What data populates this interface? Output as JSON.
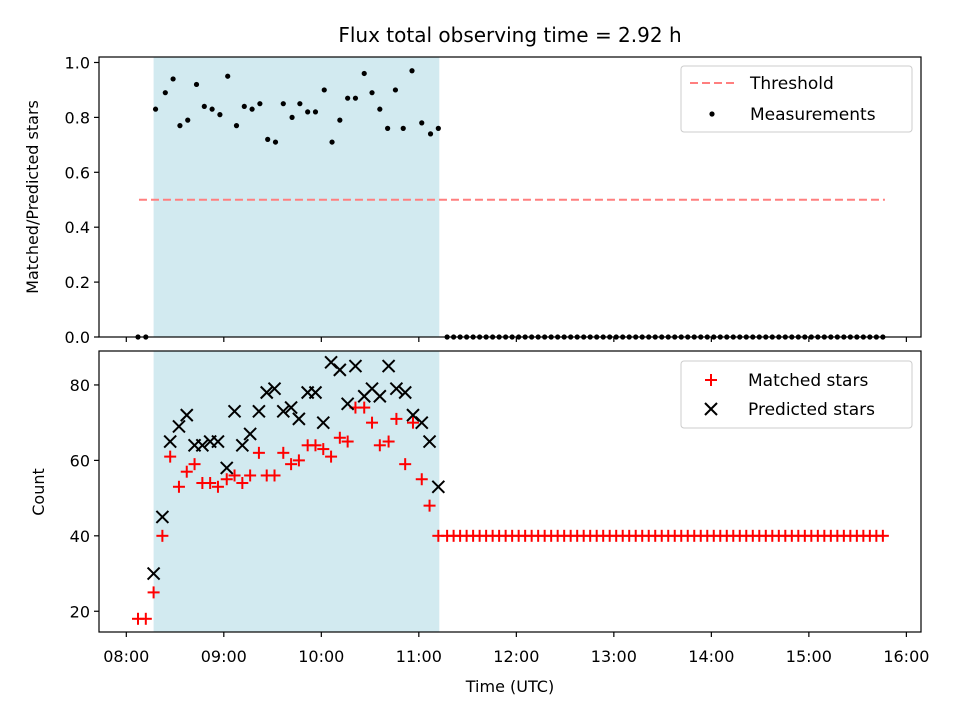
{
  "chart_data": {
    "type": "scatter",
    "title": "Flux total observing time = 2.92 h",
    "xlabel": "Time (UTC)",
    "x_ticks": [
      "08:00",
      "09:00",
      "10:00",
      "11:00",
      "12:00",
      "13:00",
      "14:00",
      "15:00",
      "16:00"
    ],
    "x_range_hours": [
      7.72,
      16.15
    ],
    "observing_window_hours": [
      8.28,
      11.21
    ],
    "colors": {
      "window": "#d2eaf0",
      "threshold": "#ff7f7f",
      "matched": "#ff0000",
      "predicted": "#000000",
      "measurement": "#000000"
    },
    "top": {
      "ylabel": "Matched/Predicted stars",
      "ylim": [
        0,
        1.02
      ],
      "y_ticks": [
        0.0,
        0.2,
        0.4,
        0.6,
        0.8,
        1.0
      ],
      "threshold": {
        "value": 0.5,
        "x_range": [
          8.13,
          15.78
        ],
        "label": "Threshold"
      },
      "measurements": {
        "label": "Measurements",
        "x": [
          8.12,
          8.2,
          8.3,
          8.4,
          8.48,
          8.55,
          8.63,
          8.72,
          8.8,
          8.88,
          8.96,
          9.04,
          9.13,
          9.21,
          9.29,
          9.37,
          9.45,
          9.53,
          9.61,
          9.7,
          9.78,
          9.86,
          9.94,
          10.03,
          10.11,
          10.19,
          10.27,
          10.35,
          10.44,
          10.52,
          10.6,
          10.68,
          10.76,
          10.84,
          10.93,
          11.03,
          11.12,
          11.2
        ],
        "y": [
          0.0,
          0.0,
          0.83,
          0.89,
          0.94,
          0.77,
          0.79,
          0.92,
          0.84,
          0.83,
          0.81,
          0.95,
          0.77,
          0.84,
          0.83,
          0.85,
          0.72,
          0.71,
          0.85,
          0.8,
          0.85,
          0.82,
          0.82,
          0.9,
          0.71,
          0.79,
          0.87,
          0.87,
          0.96,
          0.89,
          0.83,
          0.76,
          0.9,
          0.76,
          0.97,
          0.78,
          0.74,
          0.76
        ],
        "zero_series": {
          "start": 11.29,
          "end": 15.78,
          "step": 0.0667,
          "value": 0.0
        }
      },
      "legend": {
        "position": "top-right",
        "entries": [
          "Threshold",
          "Measurements"
        ]
      }
    },
    "bottom": {
      "ylabel": "Count",
      "ylim": [
        14.5,
        89
      ],
      "y_ticks": [
        20,
        40,
        60,
        80
      ],
      "matched": {
        "label": "Matched stars",
        "x": [
          8.12,
          8.2,
          8.28,
          8.37,
          8.45,
          8.54,
          8.62,
          8.7,
          8.78,
          8.86,
          8.94,
          9.03,
          9.11,
          9.19,
          9.27,
          9.36,
          9.44,
          9.52,
          9.61,
          9.69,
          9.77,
          9.86,
          9.94,
          10.02,
          10.1,
          10.19,
          10.27,
          10.35,
          10.44,
          10.52,
          10.6,
          10.69,
          10.77,
          10.86,
          10.94,
          11.03,
          11.11,
          11.2
        ],
        "y": [
          18,
          18,
          25,
          40,
          61,
          53,
          57,
          59,
          54,
          54,
          53,
          55,
          56,
          54,
          56,
          62,
          56,
          56,
          62,
          59,
          60,
          64,
          64,
          63,
          61,
          66,
          65,
          74,
          74,
          70,
          64,
          65,
          71,
          59,
          70,
          55,
          48,
          40
        ],
        "constant_series": {
          "start": 11.29,
          "end": 15.78,
          "step": 0.0667,
          "value": 40
        }
      },
      "predicted": {
        "label": "Predicted stars",
        "x": [
          8.28,
          8.37,
          8.45,
          8.54,
          8.62,
          8.7,
          8.78,
          8.86,
          8.94,
          9.03,
          9.11,
          9.19,
          9.27,
          9.36,
          9.44,
          9.52,
          9.61,
          9.69,
          9.77,
          9.86,
          9.94,
          10.02,
          10.1,
          10.19,
          10.27,
          10.35,
          10.44,
          10.52,
          10.6,
          10.69,
          10.77,
          10.86,
          10.94,
          11.03,
          11.11,
          11.2
        ],
        "y": [
          30,
          45,
          65,
          69,
          72,
          64,
          64,
          65,
          65,
          58,
          73,
          64,
          67,
          73,
          78,
          79,
          73,
          74,
          71,
          78,
          78,
          70,
          86,
          84,
          75,
          85,
          77,
          79,
          77,
          85,
          79,
          78,
          72,
          70,
          65,
          53
        ]
      },
      "legend": {
        "position": "top-right",
        "entries": [
          "Matched stars",
          "Predicted stars"
        ]
      }
    }
  }
}
